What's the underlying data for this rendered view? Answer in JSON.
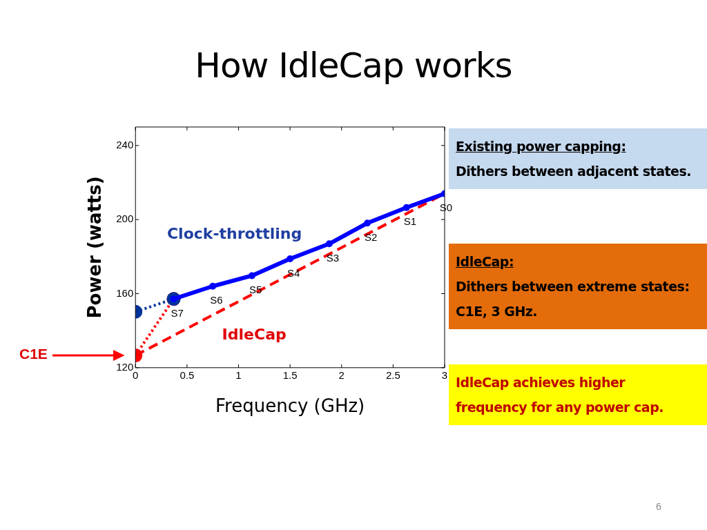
{
  "chart_data": {
    "type": "line",
    "title": "How IdleCap works",
    "xlabel": "Frequency (GHz)",
    "ylabel": "Power (watts)",
    "xlim": [
      0,
      3
    ],
    "xticks": [
      0,
      0.5,
      1,
      1.5,
      2,
      2.5,
      3
    ],
    "ylim": [
      120,
      250
    ],
    "yticks": [
      120,
      160,
      200,
      240
    ],
    "series": [
      {
        "name": "Clock-throttling",
        "color": "#0000ff",
        "line_style": "solid",
        "marker": "circle",
        "x": [
          0.37,
          0.75,
          1.13,
          1.5,
          1.88,
          2.25,
          2.63,
          3.0
        ],
        "values": [
          157.1,
          164,
          169.7,
          178.8,
          186.9,
          198.1,
          206.5,
          214
        ]
      },
      {
        "name": "IdleCap",
        "color": "#ff0000",
        "line_style": "dashed",
        "x": [
          0,
          3
        ],
        "values": [
          126.6,
          214
        ]
      },
      {
        "color": "#003399",
        "line_style": "dotted",
        "marker": "circle",
        "x": [
          0,
          0.37
        ],
        "values": [
          150.2,
          157.1
        ]
      },
      {
        "color": "#ff0000",
        "line_style": "dotted",
        "marker": "circle",
        "x": [
          0,
          0.37
        ],
        "values": [
          126.6,
          157.1
        ]
      }
    ],
    "annotations": [
      {
        "text": "S7",
        "x": 0.37,
        "y": 157.1
      },
      {
        "text": "S6",
        "x": 0.75,
        "y": 164
      },
      {
        "text": "S5",
        "x": 1.13,
        "y": 169.7
      },
      {
        "text": "S4",
        "x": 1.5,
        "y": 178.8
      },
      {
        "text": "S3",
        "x": 1.88,
        "y": 186.9
      },
      {
        "text": "S2",
        "x": 2.25,
        "y": 198.1
      },
      {
        "text": "S1",
        "x": 2.63,
        "y": 206.5
      },
      {
        "text": "S0",
        "x": 3.0,
        "y": 214
      },
      "C1E",
      "Existing power capping:",
      "Dithers between adjacent states.",
      "IdleCap:",
      "Dithers between extreme states: C1E, 3 GHz.",
      "IdleCap achieves higher frequency for any power cap.",
      "6"
    ]
  }
}
